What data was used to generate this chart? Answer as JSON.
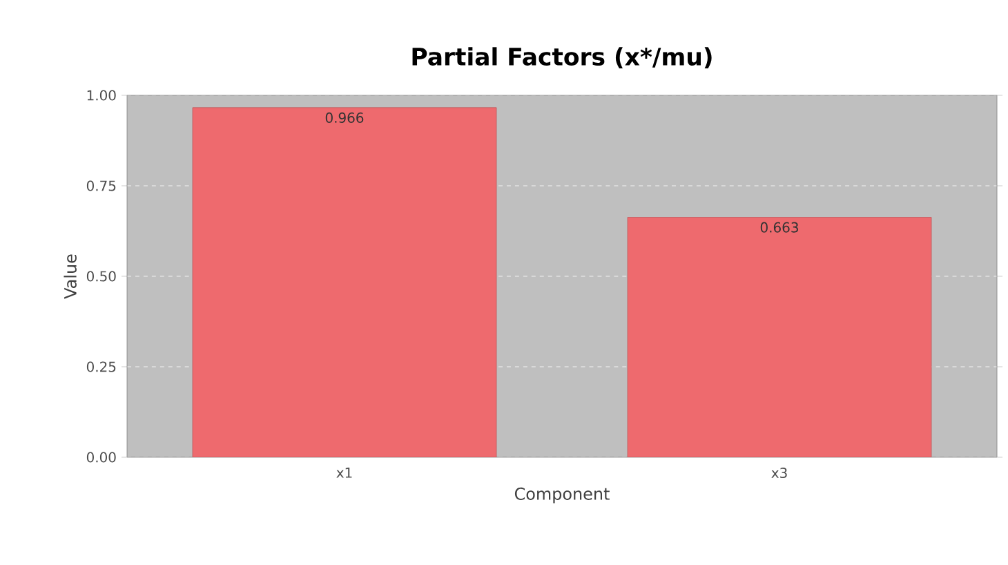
{
  "chart_data": {
    "type": "bar",
    "title": "Partial Factors (x*/mu)",
    "xlabel": "Component",
    "ylabel": "Value",
    "categories": [
      "x1",
      "x3"
    ],
    "values": [
      0.966,
      0.663
    ],
    "color": "#ee6a6e",
    "ylim": [
      0,
      1
    ],
    "yticks": [
      {
        "value": 0,
        "label": "0.00"
      },
      {
        "value": 0.25,
        "label": "0.25"
      },
      {
        "value": 0.5,
        "label": "0.50"
      },
      {
        "value": 0.75,
        "label": "0.75"
      },
      {
        "value": 1,
        "label": "1.00"
      }
    ],
    "grid": "y",
    "data_labels": true
  }
}
